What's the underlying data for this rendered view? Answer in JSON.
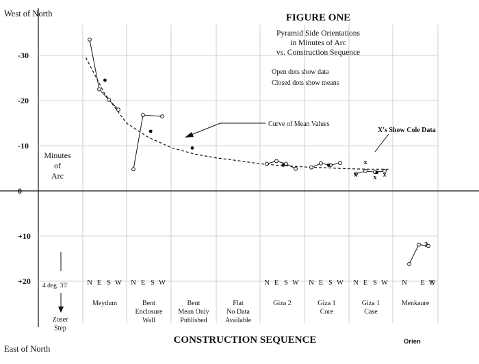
{
  "chart_data": {
    "type": "scatter",
    "title": "FIGURE ONE",
    "subtitle": [
      "Pyramid Side Orientations",
      "in Minutes of Arc",
      "vs. Construction Sequence"
    ],
    "notes": [
      "Open dots show data",
      "Closed dots show means"
    ],
    "curve_label": "Curve of Mean Values",
    "cole_label": "X's Show Cole Data",
    "top_label": "West of North",
    "bottom_label": "East of North",
    "ylabel": [
      "Minutes",
      "of",
      "Arc"
    ],
    "xlabel": "CONSTRUCTION SEQUENCE",
    "credit": "Orien",
    "ylim": [
      -40,
      30
    ],
    "y_ticks": [
      "-30",
      "-20",
      "-10",
      "0",
      "+10",
      "+20"
    ],
    "y_tick_values": [
      -30,
      -20,
      -10,
      0,
      10,
      20
    ],
    "zoser_note": "4 deg. 35'",
    "categories": [
      {
        "name": [
          "Zoser",
          "Step"
        ],
        "sides": []
      },
      {
        "name": [
          "Meydum"
        ],
        "sides": [
          "N",
          "E",
          "S",
          "W"
        ]
      },
      {
        "name": [
          "Bent",
          "Enclosure",
          "Wall"
        ],
        "sides": [
          "N",
          "E",
          "S",
          "W"
        ]
      },
      {
        "name": [
          "Bent",
          "Mean Only",
          "Published"
        ],
        "sides": []
      },
      {
        "name": [
          "Flat",
          "No Data",
          "Available"
        ],
        "sides": []
      },
      {
        "name": [
          "Giza 2"
        ],
        "sides": [
          "N",
          "E",
          "S",
          "W"
        ]
      },
      {
        "name": [
          "Giza 1",
          "Core"
        ],
        "sides": [
          "N",
          "E",
          "S",
          "W"
        ]
      },
      {
        "name": [
          "Giza 1",
          "Case"
        ],
        "sides": [
          "N",
          "E",
          "S",
          "W"
        ]
      },
      {
        "name": [
          "Menkaure"
        ],
        "sides": [
          "N",
          "E",
          "S",
          "W"
        ]
      }
    ],
    "side_labels_positions": {
      "Meydum": [
        0,
        1,
        2,
        3
      ],
      "Bent Enclosure Wall": [
        0,
        1,
        2,
        3
      ],
      "Giza 2": [
        0,
        1,
        2,
        3
      ],
      "Giza 1 Core": [
        0,
        1,
        2,
        3
      ],
      "Giza 1 Case": [
        0,
        1,
        2,
        3
      ],
      "Menkaure": [
        1,
        2,
        3
      ]
    },
    "series": [
      {
        "name": "Open dots show data",
        "marker": "open",
        "groups": [
          {
            "category": 1,
            "points": [
              {
                "side": 0,
                "y": -33.5
              },
              {
                "side": 1,
                "y": -22.5
              },
              {
                "side": 2,
                "y": -20.2
              },
              {
                "side": 3,
                "y": -18.0
              }
            ]
          },
          {
            "category": 2,
            "points": [
              {
                "side": 0,
                "y": -4.8
              },
              {
                "side": 1,
                "y": -16.8
              },
              {
                "side": 3,
                "y": -16.5
              }
            ]
          },
          {
            "category": 5,
            "points": [
              {
                "side": 0,
                "y": -6.0
              },
              {
                "side": 1,
                "y": -6.6
              },
              {
                "side": 2,
                "y": -6.0
              },
              {
                "side": 3,
                "y": -4.9
              }
            ]
          },
          {
            "category": 6,
            "points": [
              {
                "side": 0,
                "y": -5.2
              },
              {
                "side": 1,
                "y": -6.1
              },
              {
                "side": 2,
                "y": -5.7
              },
              {
                "side": 3,
                "y": -6.2
              }
            ]
          },
          {
            "category": 7,
            "points": [
              {
                "side": 0,
                "y": -3.8
              },
              {
                "side": 1,
                "y": -4.4
              },
              {
                "side": 2,
                "y": -4.2
              },
              {
                "side": 3,
                "y": -4.4
              }
            ]
          },
          {
            "category": 8,
            "points": [
              {
                "side": 1,
                "y": 16.2
              },
              {
                "side": 2,
                "y": 11.9
              },
              {
                "side": 3,
                "y": 12.2
              }
            ]
          }
        ]
      },
      {
        "name": "Closed dots show means",
        "marker": "closed",
        "points": [
          {
            "category": 1,
            "side": 1.6,
            "y": -24.5
          },
          {
            "category": 2,
            "side": 1.8,
            "y": -13.2
          },
          {
            "category": 3,
            "side": 1.5,
            "y": -9.5
          },
          {
            "category": 5,
            "side": 1.7,
            "y": -5.7
          },
          {
            "category": 6,
            "side": 1.8,
            "y": -5.7
          },
          {
            "category": 7,
            "side": 2.2,
            "y": -4.1
          }
        ]
      },
      {
        "name": "X's Show Cole Data",
        "marker": "x",
        "points": [
          {
            "category": 7,
            "side": 1,
            "y": -6.5
          },
          {
            "category": 7,
            "side": 0,
            "y": -3.8
          },
          {
            "category": 7,
            "side": 2,
            "y": -3.2
          },
          {
            "category": 7,
            "side": 3,
            "y": -3.8
          }
        ]
      }
    ],
    "mean_curve": {
      "name": "Curve of Mean Values",
      "x": [
        1.07,
        1.5,
        2,
        2.5,
        3,
        3.5,
        4,
        4.5,
        5,
        5.5,
        6,
        6.5,
        7,
        7.5,
        7.9
      ],
      "y": [
        -29.5,
        -21.5,
        -15.0,
        -11.8,
        -9.6,
        -8.2,
        -7.3,
        -6.7,
        -6.0,
        -5.6,
        -5.3,
        -5.1,
        -4.9,
        -4.8,
        -4.8
      ]
    },
    "menkaure_question": "?",
    "grid": true
  }
}
